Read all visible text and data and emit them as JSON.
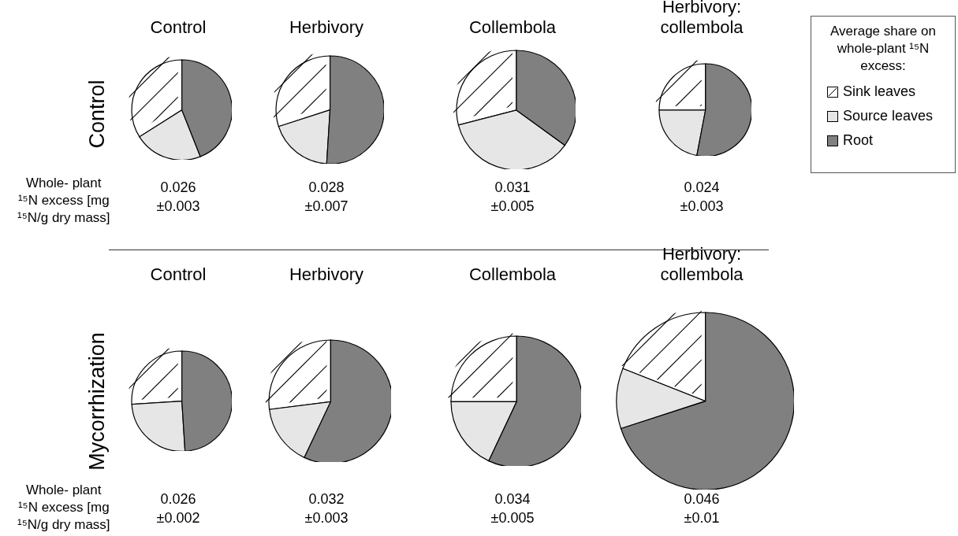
{
  "chart_data": [
    {
      "type": "pie",
      "title": "Control",
      "ylabel": "Control",
      "categories": [
        "Sink leaves",
        "Source leaves",
        "Root"
      ],
      "values": [
        34,
        22,
        44
      ],
      "colors": [
        "#ffffff",
        "#e6e6e6",
        "#808080"
      ],
      "legend": "right",
      "legend_title": "Average share on whole-plant ¹⁵N excess:",
      "annotations": [
        "0.026\n±0.003",
        "Whole- plant\n¹⁵N excess [mg\n¹⁵N/g dry mass]"
      ]
    },
    {
      "type": "pie",
      "title": "Herbivory",
      "categories": [
        null,
        null,
        null
      ],
      "values": [
        30,
        19,
        51
      ],
      "colors": [
        "#ffffff",
        "#e6e6e6",
        "#808080"
      ],
      "annotations": [
        "0.028\n±0.007"
      ]
    },
    {
      "type": "pie",
      "title": "Collembola",
      "categories": [
        null,
        null,
        null
      ],
      "values": [
        29,
        36,
        35
      ],
      "colors": [
        "#ffffff",
        "#e6e6e6",
        "#808080"
      ],
      "annotations": [
        "0.031\n±0.005"
      ]
    },
    {
      "type": "pie",
      "title": "Herbivory: collembola",
      "categories": [
        null,
        null,
        null
      ],
      "values": [
        25,
        22,
        53
      ],
      "colors": [
        "#ffffff",
        "#e6e6e6",
        "#808080"
      ],
      "annotations": [
        "0.024\n±0.003"
      ]
    },
    {
      "type": "pie",
      "title": "Control",
      "ylabel": "Mycorrhization",
      "categories": [
        null,
        null,
        null
      ],
      "values": [
        26,
        25,
        49
      ],
      "colors": [
        "#ffffff",
        "#e6e6e6",
        "#808080"
      ],
      "annotations": [
        "0.026\n±0.002",
        "Whole- plant\n¹⁵N excess [mg\n¹⁵N/g dry mass]"
      ]
    },
    {
      "type": "pie",
      "title": "Herbivory",
      "categories": [
        null,
        null,
        null
      ],
      "values": [
        27,
        16,
        57
      ],
      "colors": [
        "#ffffff",
        "#e6e6e6",
        "#808080"
      ],
      "annotations": [
        "0.032\n±0.003"
      ]
    },
    {
      "type": "pie",
      "title": "Collembola",
      "categories": [
        null,
        null,
        null
      ],
      "values": [
        25,
        18,
        57
      ],
      "colors": [
        "#ffffff",
        "#e6e6e6",
        "#808080"
      ],
      "annotations": [
        "0.034\n±0.005"
      ]
    },
    {
      "type": "pie",
      "title": "Herbivory: collembola",
      "categories": [
        null,
        null,
        null
      ],
      "values": [
        19,
        11,
        70
      ],
      "colors": [
        "#ffffff",
        "#e6e6e6",
        "#808080"
      ],
      "annotations": [
        "0.046\n±0.01"
      ]
    }
  ]
}
